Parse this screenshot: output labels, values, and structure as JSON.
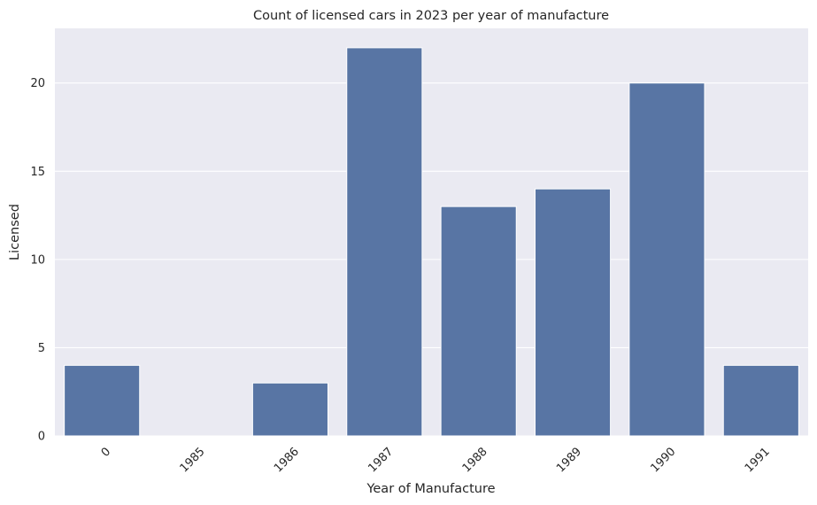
{
  "chart_data": {
    "type": "bar",
    "title": "Count of licensed cars in 2023 per year of manufacture",
    "xlabel": "Year of Manufacture",
    "ylabel": "Licensed",
    "categories": [
      "0",
      "1985",
      "1986",
      "1987",
      "1988",
      "1989",
      "1990",
      "1991"
    ],
    "values": [
      4,
      0,
      3,
      22,
      13,
      14,
      20,
      4
    ],
    "ylim": [
      0,
      23.1
    ],
    "yticks": [
      "0",
      "5",
      "10",
      "15",
      "20"
    ],
    "grid": true,
    "bar_color": "#5875a4",
    "plot_background": "#eaeaf2"
  }
}
